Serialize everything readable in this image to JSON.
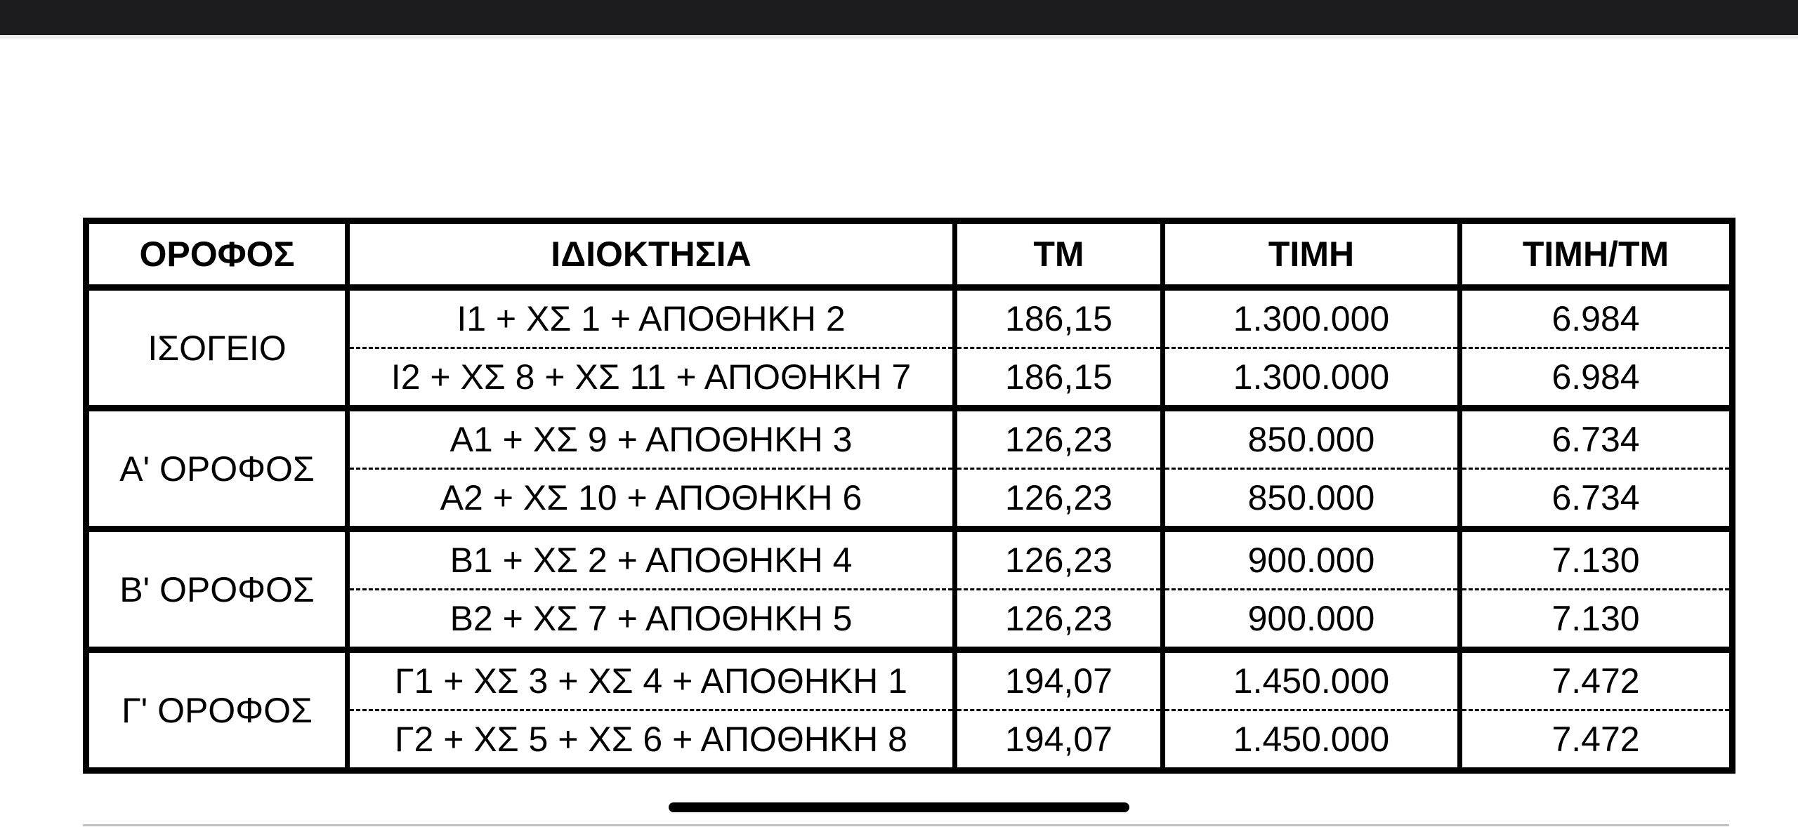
{
  "table": {
    "headers": [
      "ΟΡΟΦΟΣ",
      "ΙΔΙΟΚΤΗΣΙΑ",
      "ΤΜ",
      "ΤΙΜΗ",
      "ΤΙΜΗ/ΤΜ"
    ],
    "groups": [
      {
        "floor": "ΙΣΟΓΕΙΟ",
        "rows": [
          {
            "property": "Ι1  + ΧΣ 1 + ΑΠΟΘΗΚΗ 2",
            "sqm": "186,15",
            "price": "1.300.000",
            "price_per_sqm": "6.984"
          },
          {
            "property": "Ι2 + ΧΣ 8 + ΧΣ 11 + ΑΠΟΘΗΚΗ 7",
            "sqm": "186,15",
            "price": "1.300.000",
            "price_per_sqm": "6.984"
          }
        ]
      },
      {
        "floor": "Α' ΟΡΟΦΟΣ",
        "rows": [
          {
            "property": "Α1 + ΧΣ 9 + ΑΠΟΘΗΚΗ 3",
            "sqm": "126,23",
            "price": "850.000",
            "price_per_sqm": "6.734"
          },
          {
            "property": "Α2 + ΧΣ 10 + ΑΠΟΘΗΚΗ 6",
            "sqm": "126,23",
            "price": "850.000",
            "price_per_sqm": "6.734"
          }
        ]
      },
      {
        "floor": "Β' ΟΡΟΦΟΣ",
        "rows": [
          {
            "property": "Β1 + ΧΣ 2 + ΑΠΟΘΗΚΗ 4",
            "sqm": "126,23",
            "price": "900.000",
            "price_per_sqm": "7.130"
          },
          {
            "property": "Β2 + ΧΣ 7 + ΑΠΟΘΗΚΗ 5",
            "sqm": "126,23",
            "price": "900.000",
            "price_per_sqm": "7.130"
          }
        ]
      },
      {
        "floor": "Γ' ΟΡΟΦΟΣ",
        "rows": [
          {
            "property": "Γ1 + ΧΣ 3 + ΧΣ 4 + ΑΠΟΘΗΚΗ 1",
            "sqm": "194,07",
            "price": "1.450.000",
            "price_per_sqm": "7.472"
          },
          {
            "property": "Γ2 + ΧΣ 5 + ΧΣ 6 + ΑΠΟΘΗΚΗ 8",
            "sqm": "194,07",
            "price": "1.450.000",
            "price_per_sqm": "7.472"
          }
        ]
      }
    ]
  }
}
